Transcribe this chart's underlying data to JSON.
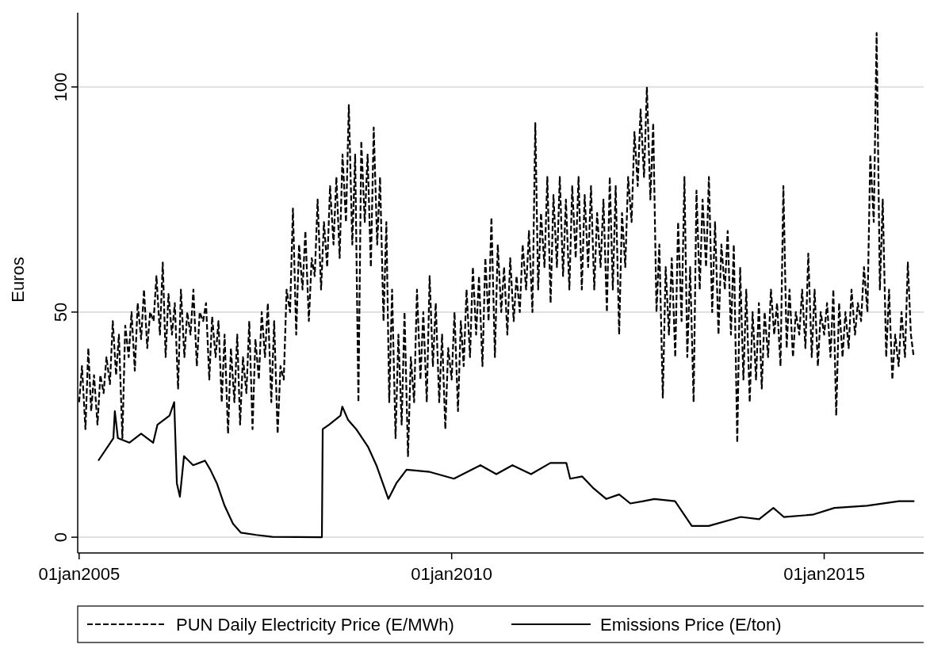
{
  "chart_data": {
    "type": "line",
    "ylabel": "Euros",
    "xlim": [
      "2004-12-25",
      "2016-05-22"
    ],
    "xticks": [
      {
        "value": "2005-01-01",
        "label": "01jan2005"
      },
      {
        "value": "2010-01-01",
        "label": "01jan2010"
      },
      {
        "value": "2015-01-01",
        "label": "01jan2015"
      }
    ],
    "ylim": [
      -3.5,
      116.5
    ],
    "yticks": [
      0,
      50,
      100
    ],
    "grid": "y",
    "legend": "bottom",
    "marker": "none",
    "series": [
      {
        "name": "PUN Daily Electricity Price (E/MWh)",
        "color": "#000000",
        "line_style": "dashed",
        "x": [
          "2005-01-01",
          "2005-01-15",
          "2005-02-01",
          "2005-02-15",
          "2005-03-01",
          "2005-03-15",
          "2005-04-01",
          "2005-04-15",
          "2005-05-01",
          "2005-05-15",
          "2005-06-01",
          "2005-06-15",
          "2005-07-01",
          "2005-07-15",
          "2005-08-01",
          "2005-08-15",
          "2005-09-01",
          "2005-09-15",
          "2005-10-01",
          "2005-10-15",
          "2005-11-01",
          "2005-11-15",
          "2005-12-01",
          "2005-12-15",
          "2006-01-01",
          "2006-01-15",
          "2006-02-01",
          "2006-02-15",
          "2006-03-01",
          "2006-03-15",
          "2006-04-01",
          "2006-04-15",
          "2006-05-01",
          "2006-05-15",
          "2006-06-01",
          "2006-06-15",
          "2006-07-01",
          "2006-07-15",
          "2006-08-01",
          "2006-08-15",
          "2006-09-01",
          "2006-09-15",
          "2006-10-01",
          "2006-10-15",
          "2006-11-01",
          "2006-11-15",
          "2006-12-01",
          "2006-12-15",
          "2007-01-01",
          "2007-01-15",
          "2007-02-01",
          "2007-02-15",
          "2007-03-01",
          "2007-03-15",
          "2007-04-01",
          "2007-04-15",
          "2007-05-01",
          "2007-05-15",
          "2007-06-01",
          "2007-06-15",
          "2007-07-01",
          "2007-07-15",
          "2007-08-01",
          "2007-08-15",
          "2007-09-01",
          "2007-09-15",
          "2007-10-01",
          "2007-10-15",
          "2007-11-01",
          "2007-11-15",
          "2007-12-01",
          "2007-12-15",
          "2008-01-01",
          "2008-01-15",
          "2008-02-01",
          "2008-02-15",
          "2008-03-01",
          "2008-03-15",
          "2008-04-01",
          "2008-04-15",
          "2008-05-01",
          "2008-05-15",
          "2008-06-01",
          "2008-06-15",
          "2008-07-01",
          "2008-07-15",
          "2008-08-01",
          "2008-08-15",
          "2008-09-01",
          "2008-09-15",
          "2008-10-01",
          "2008-10-15",
          "2008-11-01",
          "2008-11-15",
          "2008-12-01",
          "2008-12-15",
          "2009-01-01",
          "2009-01-15",
          "2009-02-01",
          "2009-02-15",
          "2009-03-01",
          "2009-03-15",
          "2009-04-01",
          "2009-04-15",
          "2009-05-01",
          "2009-05-15",
          "2009-06-01",
          "2009-06-15",
          "2009-07-01",
          "2009-07-15",
          "2009-08-01",
          "2009-08-15",
          "2009-09-01",
          "2009-09-15",
          "2009-10-01",
          "2009-10-15",
          "2009-11-01",
          "2009-11-15",
          "2009-12-01",
          "2009-12-15",
          "2010-01-01",
          "2010-01-15",
          "2010-02-01",
          "2010-02-15",
          "2010-03-01",
          "2010-03-15",
          "2010-04-01",
          "2010-04-15",
          "2010-05-01",
          "2010-05-15",
          "2010-06-01",
          "2010-06-15",
          "2010-07-01",
          "2010-07-15",
          "2010-08-01",
          "2010-08-15",
          "2010-09-01",
          "2010-09-15",
          "2010-10-01",
          "2010-10-15",
          "2010-11-01",
          "2010-11-15",
          "2010-12-01",
          "2010-12-15",
          "2011-01-01",
          "2011-01-15",
          "2011-02-01",
          "2011-02-15",
          "2011-03-01",
          "2011-03-15",
          "2011-04-01",
          "2011-04-15",
          "2011-05-01",
          "2011-05-15",
          "2011-06-01",
          "2011-06-15",
          "2011-07-01",
          "2011-07-15",
          "2011-08-01",
          "2011-08-15",
          "2011-09-01",
          "2011-09-15",
          "2011-10-01",
          "2011-10-15",
          "2011-11-01",
          "2011-11-15",
          "2011-12-01",
          "2011-12-15",
          "2012-01-01",
          "2012-01-15",
          "2012-02-01",
          "2012-02-15",
          "2012-03-01",
          "2012-03-15",
          "2012-04-01",
          "2012-04-15",
          "2012-05-01",
          "2012-05-15",
          "2012-06-01",
          "2012-06-15",
          "2012-07-01",
          "2012-07-15",
          "2012-08-01",
          "2012-08-15",
          "2012-09-01",
          "2012-09-15",
          "2012-10-01",
          "2012-10-15",
          "2012-11-01",
          "2012-11-15",
          "2012-12-01",
          "2012-12-15",
          "2013-01-01",
          "2013-01-15",
          "2013-02-01",
          "2013-02-15",
          "2013-03-01",
          "2013-03-15",
          "2013-04-01",
          "2013-04-15",
          "2013-05-01",
          "2013-05-15",
          "2013-06-01",
          "2013-06-15",
          "2013-07-01",
          "2013-07-15",
          "2013-08-01",
          "2013-08-15",
          "2013-09-01",
          "2013-09-15",
          "2013-10-01",
          "2013-10-15",
          "2013-11-01",
          "2013-11-15",
          "2013-12-01",
          "2013-12-15",
          "2014-01-01",
          "2014-01-15",
          "2014-02-01",
          "2014-02-15",
          "2014-03-01",
          "2014-03-15",
          "2014-04-01",
          "2014-04-15",
          "2014-05-01",
          "2014-05-15",
          "2014-06-01",
          "2014-06-15",
          "2014-07-01",
          "2014-07-15",
          "2014-08-01",
          "2014-08-15",
          "2014-09-01",
          "2014-09-15",
          "2014-10-01",
          "2014-10-15",
          "2014-11-01",
          "2014-11-15",
          "2014-12-01",
          "2014-12-15",
          "2015-01-01",
          "2015-01-15",
          "2015-02-01",
          "2015-02-15",
          "2015-03-01",
          "2015-03-15",
          "2015-04-01",
          "2015-04-15",
          "2015-05-01",
          "2015-05-15",
          "2015-06-01",
          "2015-06-15",
          "2015-07-01",
          "2015-07-15",
          "2015-08-01",
          "2015-08-15",
          "2015-09-01",
          "2015-09-15",
          "2015-10-01",
          "2015-10-15",
          "2015-11-01",
          "2015-11-15",
          "2015-12-01",
          "2015-12-15",
          "2016-01-01",
          "2016-01-15",
          "2016-02-01",
          "2016-02-15",
          "2016-03-01",
          "2016-03-15"
        ],
        "values": [
          30,
          38,
          24,
          42,
          28,
          36,
          25,
          36,
          32,
          40,
          34,
          48,
          36,
          45,
          22,
          47,
          40,
          50,
          37,
          52,
          44,
          55,
          42,
          50,
          48,
          58,
          45,
          61,
          40,
          54,
          45,
          52,
          33,
          55,
          40,
          50,
          45,
          55,
          38,
          50,
          48,
          52,
          35,
          49,
          40,
          48,
          30,
          45,
          23,
          42,
          30,
          45,
          25,
          40,
          32,
          48,
          24,
          44,
          35,
          50,
          40,
          52,
          30,
          48,
          23,
          38,
          35,
          55,
          50,
          73,
          45,
          65,
          55,
          68,
          48,
          62,
          58,
          75,
          55,
          70,
          60,
          78,
          65,
          80,
          62,
          85,
          70,
          96,
          65,
          85,
          30,
          88,
          70,
          85,
          60,
          91,
          65,
          80,
          48,
          70,
          30,
          55,
          22,
          45,
          25,
          50,
          18,
          40,
          30,
          55,
          35,
          50,
          30,
          58,
          38,
          52,
          30,
          45,
          24,
          42,
          35,
          50,
          28,
          48,
          38,
          55,
          40,
          60,
          45,
          58,
          38,
          62,
          48,
          71,
          40,
          65,
          50,
          60,
          45,
          62,
          48,
          58,
          50,
          65,
          55,
          68,
          50,
          92,
          55,
          72,
          60,
          80,
          52,
          76,
          60,
          80,
          58,
          75,
          55,
          78,
          62,
          80,
          55,
          76,
          60,
          78,
          55,
          72,
          60,
          75,
          50,
          80,
          55,
          78,
          45,
          72,
          60,
          80,
          70,
          90,
          78,
          95,
          80,
          100,
          75,
          92,
          50,
          65,
          31,
          60,
          45,
          62,
          40,
          70,
          48,
          80,
          40,
          60,
          30,
          77,
          55,
          75,
          60,
          80,
          50,
          70,
          45,
          65,
          55,
          68,
          45,
          65,
          21,
          60,
          35,
          55,
          30,
          50,
          35,
          52,
          33,
          50,
          40,
          55,
          45,
          52,
          38,
          78,
          42,
          55,
          40,
          50,
          45,
          55,
          42,
          63,
          40,
          55,
          38,
          50,
          45,
          52,
          40,
          55,
          27,
          52,
          40,
          50,
          42,
          55,
          45,
          52,
          48,
          60,
          50,
          85,
          70,
          112,
          55,
          75,
          40,
          55,
          35,
          45,
          38,
          50,
          40,
          61,
          45,
          40
        ]
      },
      {
        "name": "Emissions Price (E/ton)",
        "color": "#000000",
        "line_style": "solid",
        "x": [
          "2005-04-05",
          "2005-06-18",
          "2005-06-25",
          "2005-07-10",
          "2005-09-04",
          "2005-11-01",
          "2005-12-30",
          "2006-01-20",
          "2006-03-20",
          "2006-04-12",
          "2006-04-25",
          "2006-05-10",
          "2006-05-30",
          "2006-07-14",
          "2006-09-10",
          "2006-10-06",
          "2006-11-07",
          "2006-12-15",
          "2007-01-25",
          "2007-03-05",
          "2007-05-20",
          "2007-08-06",
          "2008-04-05",
          "2008-04-09",
          "2008-05-10",
          "2008-07-05",
          "2008-07-14",
          "2008-08-12",
          "2008-09-20",
          "2008-11-18",
          "2008-12-28",
          "2009-02-25",
          "2009-04-05",
          "2009-05-25",
          "2009-09-16",
          "2010-01-12",
          "2010-05-22",
          "2010-08-08",
          "2010-10-26",
          "2011-01-25",
          "2011-04-30",
          "2011-07-17",
          "2011-08-05",
          "2011-10-03",
          "2011-11-24",
          "2012-01-29",
          "2012-04-01",
          "2012-05-26",
          "2012-07-28",
          "2012-09-21",
          "2012-12-31",
          "2013-03-23",
          "2013-06-14",
          "2013-11-18",
          "2014-02-16",
          "2014-04-27",
          "2014-06-17",
          "2014-11-05",
          "2015-02-20",
          "2015-07-30",
          "2016-01-03",
          "2016-03-18"
        ],
        "values": [
          17,
          22,
          28,
          22,
          21,
          23,
          21,
          25,
          27,
          30,
          12,
          9,
          18,
          16,
          17,
          15,
          12,
          7,
          3,
          1,
          0.5,
          0.1,
          0,
          24,
          25,
          27,
          29,
          26,
          24,
          20,
          16,
          8.5,
          12,
          15,
          14.5,
          13,
          16,
          14,
          16,
          14,
          16.5,
          16.5,
          13,
          13.5,
          11,
          8.5,
          9.5,
          7.5,
          8,
          8.5,
          8,
          2.5,
          2.5,
          4.5,
          4,
          6.5,
          4.5,
          5,
          6.5,
          7,
          8,
          8
        ]
      }
    ]
  }
}
